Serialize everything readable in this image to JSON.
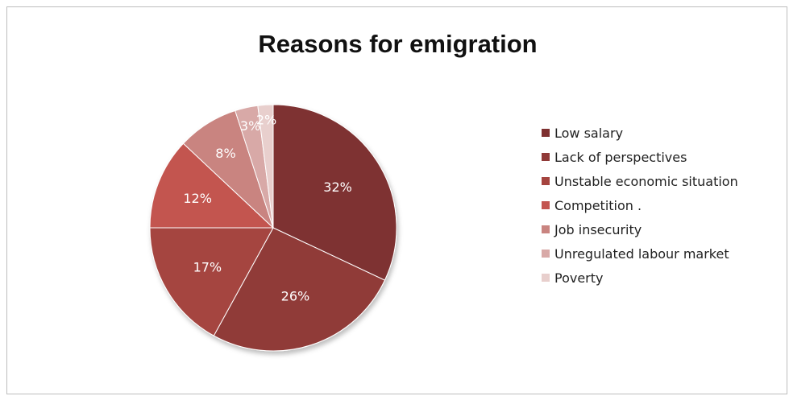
{
  "chart_data": {
    "type": "pie",
    "title": "Reasons for emigration",
    "categories": [
      "Low salary",
      "Lack of perspectives",
      "Unstable economic situation",
      "Competition .",
      "Job insecurity",
      "Unregulated labour market",
      "Poverty"
    ],
    "values": [
      32,
      26,
      17,
      12,
      8,
      3,
      2
    ],
    "value_labels": [
      "32%",
      "26%",
      "17%",
      "12%",
      "8%",
      "3%",
      "2%"
    ],
    "colors": [
      "#7e3030",
      "#903a38",
      "#a5443f",
      "#c35550",
      "#c98480",
      "#d8a9a7",
      "#e8cfcd"
    ],
    "legend_position": "right"
  }
}
